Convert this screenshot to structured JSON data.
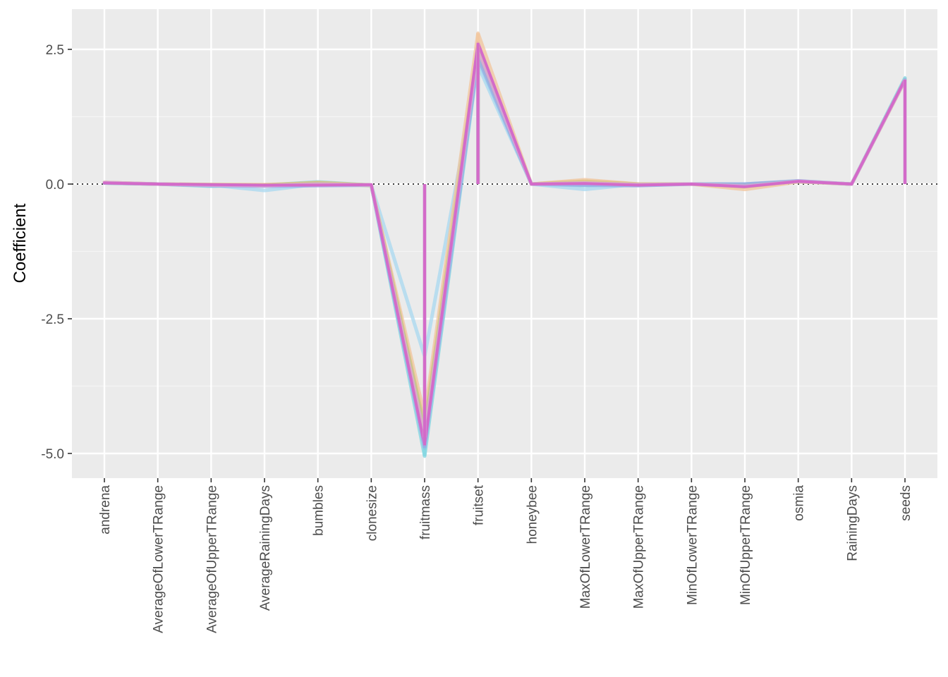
{
  "chart_data": {
    "type": "line",
    "title": "",
    "xlabel": "",
    "ylabel": "Coefficient",
    "ylim": [
      -5.25,
      3.3
    ],
    "yticks": [
      -5.0,
      -2.5,
      0.0,
      2.5
    ],
    "ytick_labels": [
      "-5.0",
      "-2.5",
      "0.0",
      "2.5"
    ],
    "grid": true,
    "legend": "none",
    "reference_line": {
      "y": 0,
      "style": "dotted"
    },
    "categories": [
      "andrena",
      "AverageOfLowerTRange",
      "AverageOfUpperTRange",
      "AverageRainingDays",
      "bumbles",
      "clonesize",
      "fruitmass",
      "fruitset",
      "honeybee",
      "MaxOfLowerTRange",
      "MaxOfUpperTRange",
      "MinOfLowerTRange",
      "MinOfUpperTRange",
      "osmia",
      "RainingDays",
      "seeds"
    ],
    "series": [
      {
        "color": "#7fd6e0",
        "values": [
          0.02,
          0.0,
          -0.04,
          -0.02,
          0.04,
          -0.02,
          -5.05,
          2.3,
          0.0,
          -0.03,
          -0.02,
          0.0,
          0.0,
          0.05,
          0.0,
          1.97
        ]
      },
      {
        "color": "#a8d8f0",
        "values": [
          0.02,
          0.0,
          -0.02,
          -0.12,
          0.0,
          -0.02,
          -3.2,
          2.2,
          0.0,
          -0.1,
          0.0,
          0.0,
          -0.03,
          0.04,
          0.0,
          1.95
        ]
      },
      {
        "color": "#f2c49b",
        "values": [
          0.03,
          0.0,
          -0.01,
          -0.01,
          0.02,
          -0.02,
          -4.3,
          2.8,
          0.0,
          0.08,
          0.0,
          0.0,
          -0.1,
          0.04,
          0.0,
          1.92
        ]
      },
      {
        "color": "#d9c27f",
        "values": [
          0.03,
          0.0,
          -0.01,
          -0.02,
          0.03,
          -0.02,
          -4.5,
          2.55,
          0.0,
          0.05,
          0.0,
          0.0,
          -0.05,
          0.05,
          0.0,
          1.93
        ]
      },
      {
        "color": "#b3c98a",
        "values": [
          0.02,
          0.0,
          -0.02,
          -0.03,
          0.01,
          -0.03,
          -4.6,
          2.45,
          0.0,
          0.02,
          -0.01,
          0.0,
          -0.02,
          0.05,
          0.0,
          1.94
        ]
      },
      {
        "color": "#9aa8e6",
        "values": [
          0.02,
          0.0,
          -0.03,
          -0.04,
          -0.03,
          -0.02,
          -4.9,
          2.35,
          0.0,
          -0.02,
          -0.03,
          0.0,
          0.0,
          0.06,
          0.0,
          1.94
        ]
      },
      {
        "color": "#e0a6d8",
        "values": [
          0.03,
          0.0,
          -0.02,
          -0.03,
          0.0,
          -0.02,
          -4.7,
          2.5,
          0.0,
          0.02,
          -0.01,
          0.0,
          -0.04,
          0.05,
          0.0,
          1.93
        ]
      },
      {
        "color": "#d36bc9",
        "values": [
          0.02,
          0.0,
          -0.01,
          -0.02,
          -0.02,
          -0.01,
          -4.85,
          2.62,
          0.0,
          0.01,
          -0.02,
          0.0,
          -0.05,
          0.05,
          0.0,
          1.94
        ]
      }
    ]
  }
}
